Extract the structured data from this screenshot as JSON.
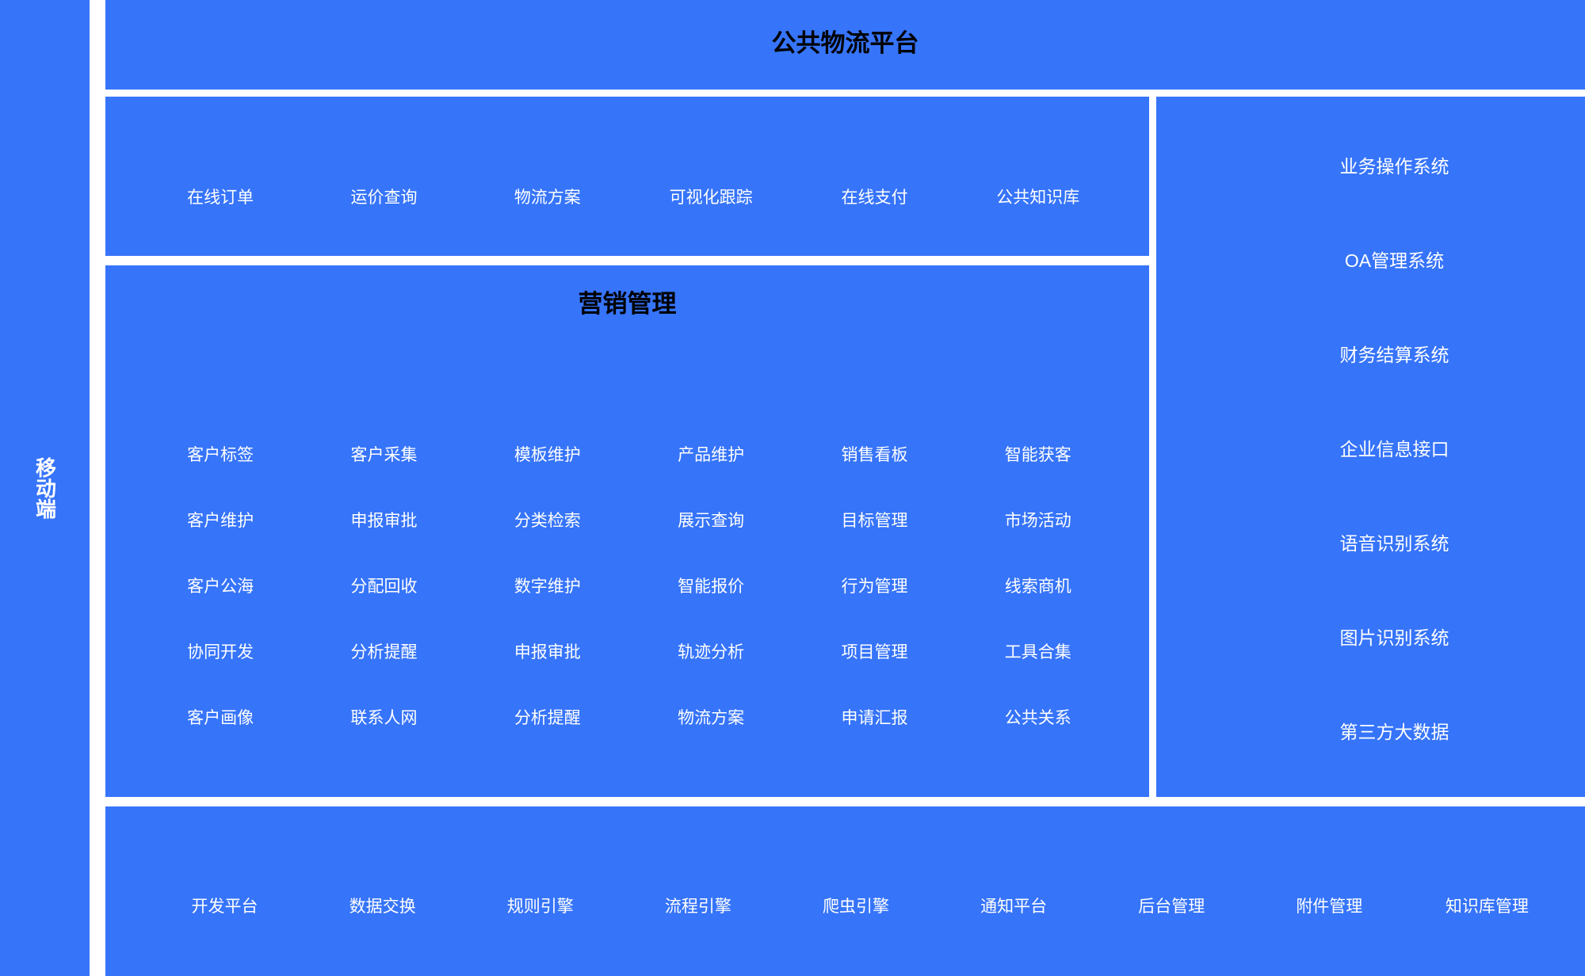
{
  "colors": {
    "panel_blue": "#3674fa",
    "title_black": "#000000",
    "item_white": "#ffffff"
  },
  "sidebar": {
    "label": "移动端"
  },
  "top_banner": {
    "title": "公共物流平台"
  },
  "features": {
    "items": [
      "在线订单",
      "运价查询",
      "物流方案",
      "可视化跟踪",
      "在线支付",
      "公共知识库"
    ]
  },
  "marketing": {
    "title": "营销管理",
    "rows": [
      [
        "客户标签",
        "客户采集",
        "模板维护",
        "产品维护",
        "销售看板",
        "智能获客"
      ],
      [
        "客户维护",
        "申报审批",
        "分类检索",
        "展示查询",
        "目标管理",
        "市场活动"
      ],
      [
        "客户公海",
        "分配回收",
        "数字维护",
        "智能报价",
        "行为管理",
        "线索商机"
      ],
      [
        "协同开发",
        "分析提醒",
        "申报审批",
        "轨迹分析",
        "项目管理",
        "工具合集"
      ],
      [
        "客户画像",
        "联系人网",
        "分析提醒",
        "物流方案",
        "申请汇报",
        "公共关系"
      ]
    ]
  },
  "systems": {
    "items": [
      "业务操作系统",
      "OA管理系统",
      "财务结算系统",
      "企业信息接口",
      "语音识别系统",
      "图片识别系统",
      "第三方大数据"
    ]
  },
  "platforms": {
    "items": [
      "开发平台",
      "数据交换",
      "规则引擎",
      "流程引擎",
      "爬虫引擎",
      "通知平台",
      "后台管理",
      "附件管理",
      "知识库管理"
    ]
  }
}
